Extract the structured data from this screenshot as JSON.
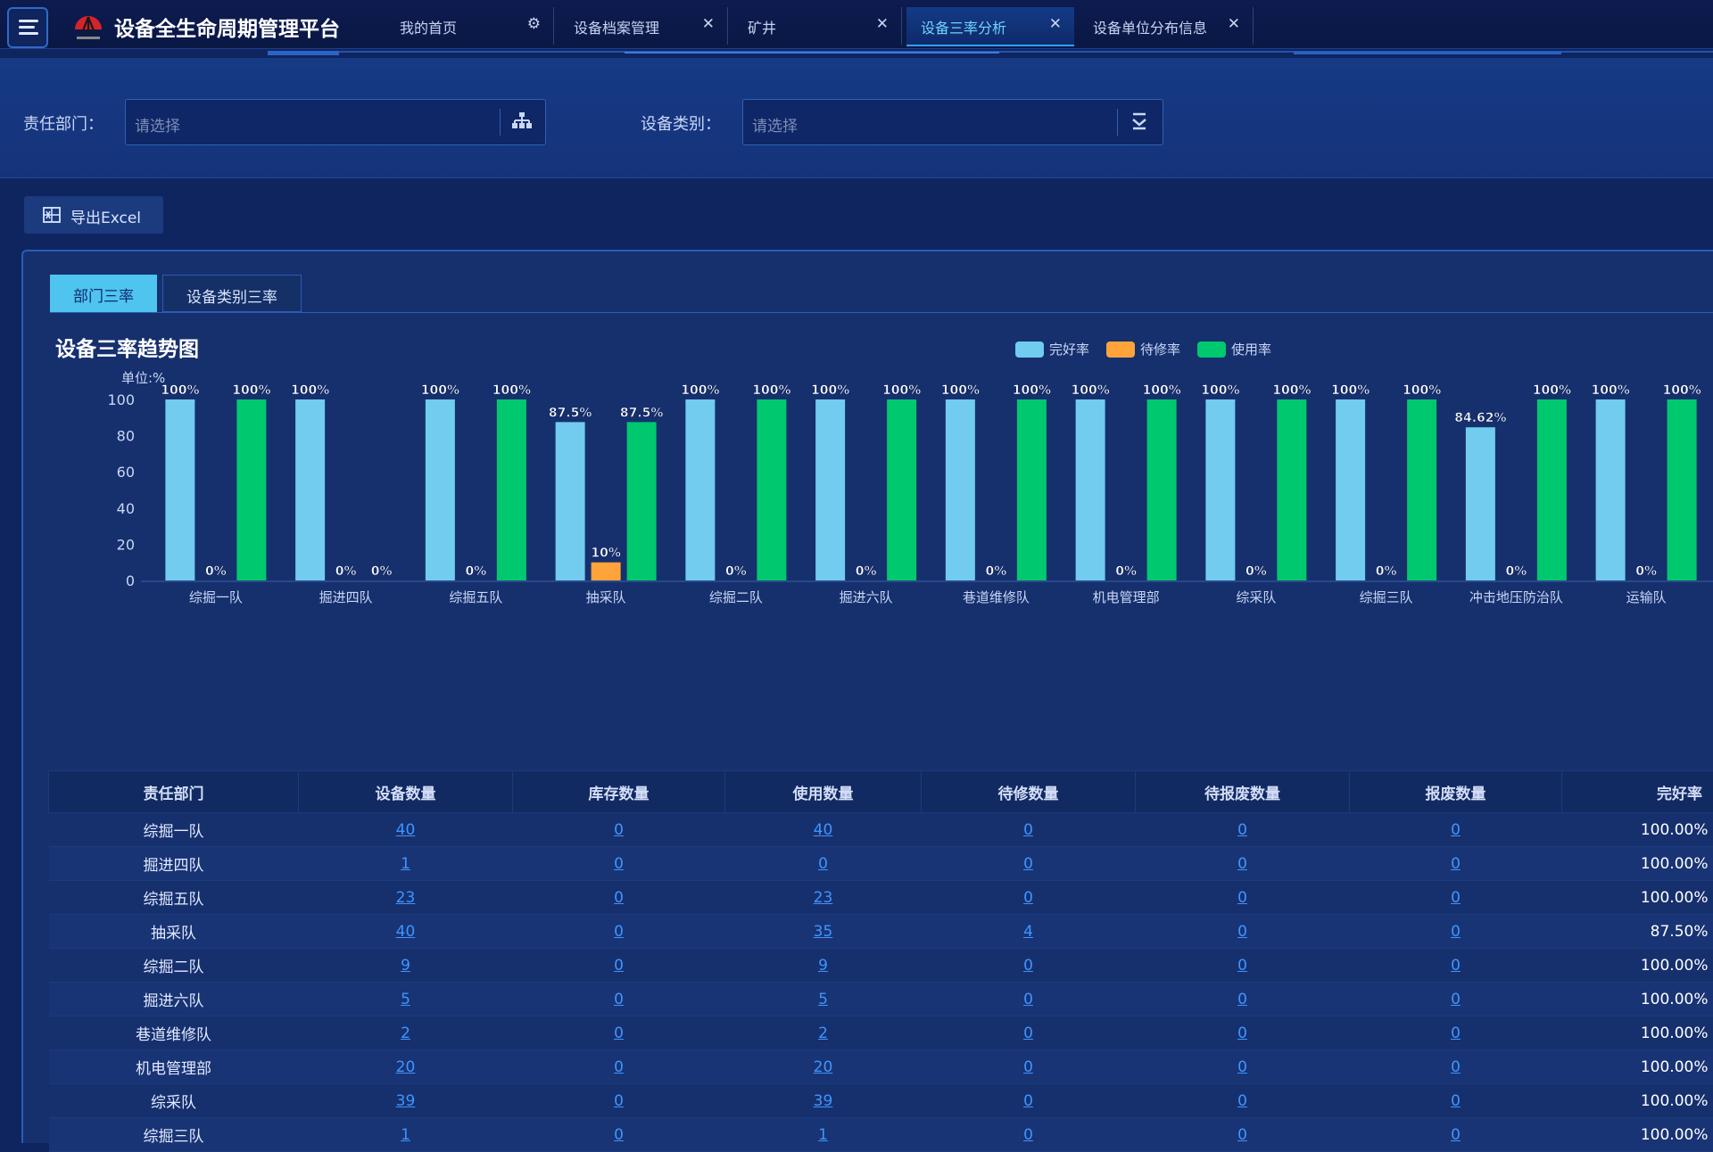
{
  "app": {
    "title": "设备全生命周期管理平台"
  },
  "tabs": [
    {
      "label": "我的首页"
    },
    {
      "label": "设备档案管理"
    },
    {
      "label": "矿井"
    },
    {
      "label": "设备三率分析"
    },
    {
      "label": "设备单位分布信息"
    }
  ],
  "filters": {
    "dept_label": "责任部门：",
    "dept_placeholder": "请选择",
    "type_label": "设备类别：",
    "type_placeholder": "请选择"
  },
  "toolbar": {
    "export_label": "导出Excel"
  },
  "panel_tabs": {
    "dept": "部门三率",
    "type": "设备类别三率"
  },
  "colors": {
    "good": "#71ccef",
    "repair": "#ffa43a",
    "use": "#00c86f"
  },
  "chart_data": {
    "type": "bar",
    "title": "设备三率趋势图",
    "unit_label": "单位:%",
    "ylim": [
      0,
      100
    ],
    "yticks": [
      0,
      20,
      40,
      60,
      80,
      100
    ],
    "categories": [
      "综掘一队",
      "掘进四队",
      "综掘五队",
      "抽采队",
      "综掘二队",
      "掘进六队",
      "巷道维修队",
      "机电管理部",
      "综采队",
      "综掘三队",
      "冲击地压防治队",
      "运输队"
    ],
    "series": [
      {
        "name": "完好率",
        "values": [
          100,
          100,
          100,
          87.5,
          100,
          100,
          100,
          100,
          100,
          100,
          84.62,
          100
        ],
        "labels": [
          "100%",
          "100%",
          "100%",
          "87.5%",
          "100%",
          "100%",
          "100%",
          "100%",
          "100%",
          "100%",
          "84.62%",
          "100%"
        ]
      },
      {
        "name": "待修率",
        "values": [
          0,
          0,
          0,
          10,
          0,
          0,
          0,
          0,
          0,
          0,
          0,
          0
        ],
        "labels": [
          "0%",
          "0%",
          "0%",
          "10%",
          "0%",
          "0%",
          "0%",
          "0%",
          "0%",
          "0%",
          "0%",
          "0%"
        ]
      },
      {
        "name": "使用率",
        "values": [
          100,
          0,
          100,
          87.5,
          100,
          100,
          100,
          100,
          100,
          100,
          100,
          100
        ],
        "labels": [
          "100%",
          "0%",
          "100%",
          "87.5%",
          "100%",
          "100%",
          "100%",
          "100%",
          "100%",
          "100%",
          "100%",
          "100%"
        ]
      }
    ],
    "legend_position": "top-right",
    "grid": false
  },
  "table": {
    "headers": [
      "责任部门",
      "设备数量",
      "库存数量",
      "使用数量",
      "待修数量",
      "待报废数量",
      "报废数量",
      "完好率"
    ],
    "rows": [
      [
        "综掘一队",
        "40",
        "0",
        "40",
        "0",
        "0",
        "0",
        "100.00%"
      ],
      [
        "掘进四队",
        "1",
        "0",
        "0",
        "0",
        "0",
        "0",
        "100.00%"
      ],
      [
        "综掘五队",
        "23",
        "0",
        "23",
        "0",
        "0",
        "0",
        "100.00%"
      ],
      [
        "抽采队",
        "40",
        "0",
        "35",
        "4",
        "0",
        "0",
        "87.50%"
      ],
      [
        "综掘二队",
        "9",
        "0",
        "9",
        "0",
        "0",
        "0",
        "100.00%"
      ],
      [
        "掘进六队",
        "5",
        "0",
        "5",
        "0",
        "0",
        "0",
        "100.00%"
      ],
      [
        "巷道维修队",
        "2",
        "0",
        "2",
        "0",
        "0",
        "0",
        "100.00%"
      ],
      [
        "机电管理部",
        "20",
        "0",
        "20",
        "0",
        "0",
        "0",
        "100.00%"
      ],
      [
        "综采队",
        "39",
        "0",
        "39",
        "0",
        "0",
        "0",
        "100.00%"
      ],
      [
        "综掘三队",
        "1",
        "0",
        "1",
        "0",
        "0",
        "0",
        "100.00%"
      ]
    ]
  }
}
